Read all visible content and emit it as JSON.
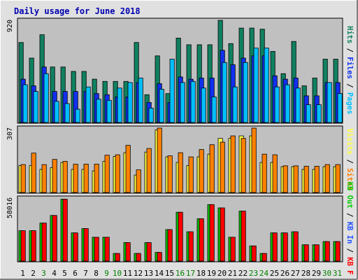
{
  "chart_data": [
    {
      "type": "bar",
      "title": "Daily usage for June 2018",
      "categories": [
        "1",
        "2",
        "3",
        "4",
        "5",
        "6",
        "7",
        "8",
        "9",
        "10",
        "11",
        "12",
        "13",
        "14",
        "15",
        "16",
        "17",
        "18",
        "19",
        "20",
        "21",
        "22",
        "23",
        "24",
        "25",
        "26",
        "27",
        "28",
        "29",
        "30",
        "31"
      ],
      "weekend_days": [
        "3",
        "9",
        "10",
        "16",
        "17",
        "23",
        "24",
        "30",
        "31"
      ],
      "y_max_label": "920",
      "ylim": [
        0,
        920
      ],
      "legend": [
        {
          "name": "Pages",
          "color": "#00c0ff"
        },
        {
          "name": "Files",
          "color": "#1030f0"
        },
        {
          "name": "Hits",
          "color": "#108060"
        }
      ],
      "series": [
        {
          "name": "Hits",
          "color": "#108060",
          "values": [
            720,
            580,
            790,
            500,
            500,
            460,
            460,
            390,
            370,
            370,
            370,
            720,
            250,
            600,
            260,
            760,
            700,
            700,
            700,
            920,
            710,
            850,
            850,
            840,
            640,
            440,
            730,
            330,
            400,
            570,
            570
          ]
        },
        {
          "name": "Files",
          "color": "#1030f0",
          "values": [
            390,
            330,
            500,
            280,
            280,
            280,
            280,
            260,
            250,
            230,
            230,
            360,
            180,
            350,
            180,
            410,
            390,
            400,
            400,
            650,
            520,
            580,
            600,
            600,
            420,
            390,
            400,
            240,
            240,
            360,
            360
          ]
        },
        {
          "name": "Pages",
          "color": "#00c0ff",
          "values": [
            340,
            280,
            440,
            190,
            170,
            120,
            320,
            210,
            200,
            310,
            360,
            400,
            130,
            300,
            570,
            360,
            370,
            310,
            230,
            540,
            320,
            540,
            670,
            670,
            320,
            340,
            310,
            160,
            160,
            360,
            260
          ]
        }
      ]
    },
    {
      "type": "bar",
      "y_max_label": "307",
      "ylim": [
        0,
        307
      ],
      "legend": [
        {
          "name": "Sites",
          "color": "#ff8000"
        },
        {
          "name": "Visits",
          "color": "#ffff40"
        }
      ],
      "series": [
        {
          "name": "Visits",
          "color": "#ffff40",
          "values": [
            128,
            128,
            110,
            118,
            143,
            110,
            110,
            103,
            148,
            172,
            190,
            83,
            193,
            298,
            170,
            143,
            128,
            170,
            183,
            258,
            258,
            270,
            270,
            143,
            143,
            123,
            123,
            110,
            110,
            123,
            123
          ]
        },
        {
          "name": "Sites",
          "color": "#ff8000",
          "values": [
            133,
            188,
            133,
            158,
            148,
            135,
            135,
            135,
            178,
            180,
            225,
            108,
            210,
            307,
            175,
            190,
            170,
            205,
            228,
            240,
            270,
            258,
            307,
            183,
            180,
            127,
            127,
            125,
            125,
            133,
            133
          ]
        }
      ]
    },
    {
      "type": "bar",
      "y_max_label": "58016",
      "ylim": [
        0,
        58016
      ],
      "legend": [
        {
          "name": "KB F",
          "color": "#ff0000"
        },
        {
          "name": "KB In",
          "color": "#2050ff"
        },
        {
          "name": "KB Out",
          "color": "#00cc00"
        }
      ],
      "series": [
        {
          "name": "KB Out",
          "color": "#00cc00",
          "values": [
            28000,
            28000,
            35000,
            42000,
            57000,
            26000,
            30000,
            22000,
            22000,
            7000,
            17000,
            7000,
            17000,
            8000,
            29000,
            45000,
            27000,
            39000,
            52000,
            49000,
            22000,
            46000,
            14000,
            7000,
            26000,
            26000,
            27000,
            15000,
            15000,
            18000,
            18000
          ]
        },
        {
          "name": "KB F",
          "color": "#ff0000",
          "values": [
            28000,
            28000,
            35000,
            42000,
            57000,
            26000,
            30000,
            22000,
            22000,
            7000,
            17000,
            7000,
            17000,
            8000,
            29000,
            45000,
            27000,
            39000,
            52000,
            49000,
            22000,
            46000,
            14000,
            7000,
            26000,
            26000,
            27000,
            15000,
            15000,
            18000,
            18000
          ]
        }
      ]
    }
  ]
}
